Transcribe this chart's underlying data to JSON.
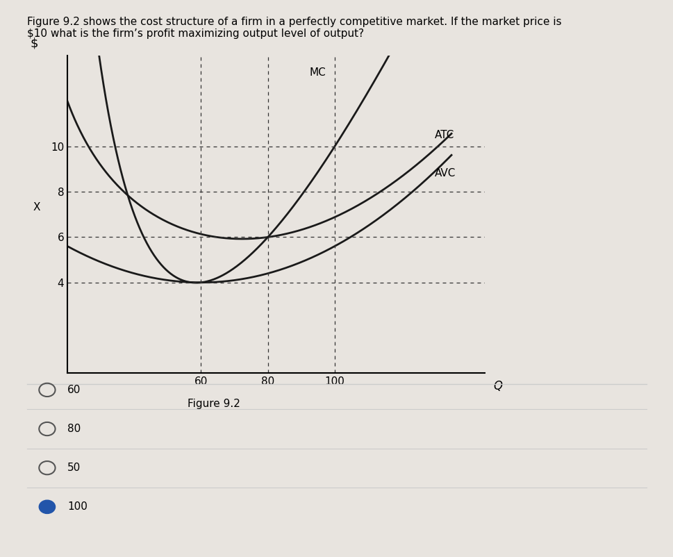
{
  "title_text": "Figure 9.2 shows the cost structure of a firm in a perfectly competitive market. If the market price is\n$10 what is the firm’s profit maximizing output level of output?",
  "fig_label": "Figure 9.2",
  "ylabel": "$",
  "xlabel": "Q",
  "yticks": [
    4,
    6,
    8,
    10
  ],
  "xticks": [
    60,
    80,
    100
  ],
  "x_label_extra": "X",
  "dashed_hlines": [
    4,
    6,
    8,
    10
  ],
  "dashed_vlines": [
    60,
    80,
    100
  ],
  "curve_color": "#1a1a1a",
  "background_color": "#e8e4df",
  "plot_bg_color": "#e8e4df",
  "answer_options": [
    "60",
    "80",
    "50",
    "100"
  ],
  "answer_correct": "100",
  "mc_label": "MC",
  "atc_label": "ATC",
  "avc_label": "AVC"
}
